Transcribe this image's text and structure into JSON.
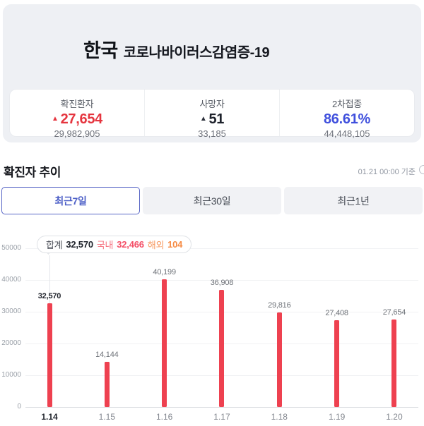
{
  "header": {
    "country": "한국",
    "title": "코로나바이러스감염증-19",
    "stats": [
      {
        "label": "확진환자",
        "arrow": "▲",
        "delta": "27,654",
        "total": "29,982,905",
        "value_color": "#e5353f"
      },
      {
        "label": "사망자",
        "arrow": "▲",
        "delta": "51",
        "total": "33,185",
        "value_color": "#1d212b"
      },
      {
        "label": "2차접종",
        "arrow": "",
        "delta": "86.61%",
        "total": "44,448,105",
        "value_color": "#4050dd"
      }
    ]
  },
  "section": {
    "title": "확진자 추이",
    "as_of": "01.21 00:00 기준"
  },
  "tabs": [
    {
      "label": "최근7일",
      "selected": true
    },
    {
      "label": "최근30일",
      "selected": false
    },
    {
      "label": "최근1년",
      "selected": false
    }
  ],
  "tooltip": {
    "total_label": "합계",
    "total_value": "32,570",
    "domestic_label": "국내",
    "domestic_value": "32,466",
    "overseas_label": "해외",
    "overseas_value": "104"
  },
  "chart_data": {
    "type": "bar",
    "title": "확진자 추이 (최근7일)",
    "xlabel": "",
    "ylabel": "",
    "categories": [
      "1.14",
      "1.15",
      "1.16",
      "1.17",
      "1.18",
      "1.19",
      "1.20"
    ],
    "values": [
      32570,
      14144,
      40199,
      36908,
      29816,
      27408,
      27654
    ],
    "value_labels": [
      "32,570",
      "14,144",
      "40,199",
      "36,908",
      "29,816",
      "27,408",
      "27,654"
    ],
    "highlighted_index": 0,
    "ylim": [
      0,
      50000
    ],
    "yticks": [
      0,
      10000,
      20000,
      30000,
      40000,
      50000
    ],
    "ytick_labels": [
      "0",
      "10000",
      "20000",
      "30000",
      "40000",
      "50000"
    ],
    "grid": true,
    "legend_position": "none",
    "bar_color": "#ee4150"
  },
  "colors": {
    "card_bg": "#eef0f4",
    "accent_red": "#e5353f",
    "accent_blue": "#4050dd",
    "tab_selected_border": "#5a68c6",
    "bar_red": "#ee4150"
  }
}
